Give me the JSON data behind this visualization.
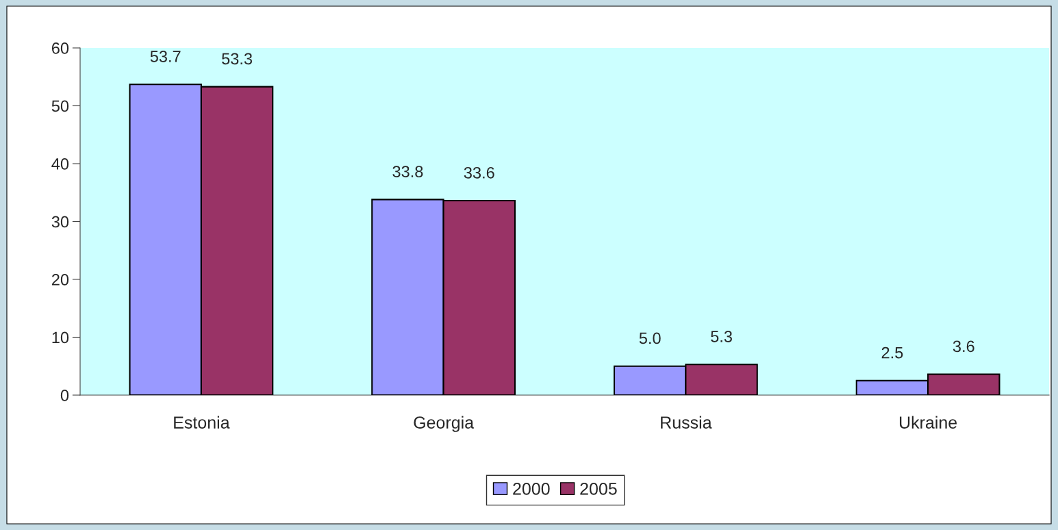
{
  "chart_data": {
    "type": "bar",
    "categories": [
      "Estonia",
      "Georgia",
      "Russia",
      "Ukraine"
    ],
    "series": [
      {
        "name": "2000",
        "color": "#9999ff",
        "values": [
          53.7,
          33.8,
          5.0,
          2.5
        ],
        "value_labels": [
          "53.7",
          "33.8",
          "5.0",
          "2.5"
        ]
      },
      {
        "name": "2005",
        "color": "#993366",
        "values": [
          53.3,
          33.6,
          5.3,
          3.6
        ],
        "value_labels": [
          "53.3",
          "33.6",
          "5.3",
          "3.6"
        ]
      }
    ],
    "ylim": [
      0,
      60
    ],
    "yticks": [
      0,
      10,
      20,
      30,
      40,
      50,
      60
    ],
    "grid": false,
    "legend": "bottom"
  }
}
